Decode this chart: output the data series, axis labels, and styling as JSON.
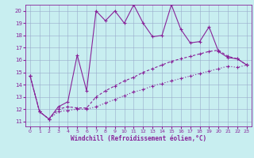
{
  "xlabel": "Windchill (Refroidissement éolien,°C)",
  "bg_color": "#c8eef0",
  "line_color": "#882299",
  "grid_color": "#99aacc",
  "xlim_min": -0.5,
  "xlim_max": 23.5,
  "ylim_min": 10.6,
  "ylim_max": 20.5,
  "xticks": [
    0,
    1,
    2,
    3,
    4,
    5,
    6,
    7,
    8,
    9,
    10,
    11,
    12,
    13,
    14,
    15,
    16,
    17,
    18,
    19,
    20,
    21,
    22,
    23
  ],
  "yticks": [
    11,
    12,
    13,
    14,
    15,
    16,
    17,
    18,
    19,
    20
  ],
  "line1_x": [
    0,
    1,
    2,
    3,
    4,
    5,
    6,
    7,
    8,
    9,
    10,
    11,
    12,
    13,
    14,
    15,
    16,
    17,
    18,
    19,
    20,
    21,
    22,
    23
  ],
  "line1_y": [
    14.7,
    11.8,
    11.2,
    12.2,
    12.6,
    16.4,
    13.5,
    20.0,
    19.2,
    20.0,
    19.0,
    20.5,
    19.0,
    17.9,
    18.0,
    20.5,
    18.5,
    17.4,
    17.5,
    18.7,
    16.7,
    16.2,
    16.1,
    15.6
  ],
  "line2_x": [
    0,
    1,
    2,
    3,
    4,
    5,
    6,
    7,
    8,
    9,
    10,
    11,
    12,
    13,
    14,
    15,
    16,
    17,
    18,
    19,
    20,
    21,
    22,
    23
  ],
  "line2_y": [
    14.7,
    11.8,
    11.2,
    12.0,
    12.2,
    12.1,
    12.1,
    13.0,
    13.5,
    13.9,
    14.3,
    14.6,
    15.0,
    15.3,
    15.6,
    15.9,
    16.1,
    16.3,
    16.5,
    16.7,
    16.8,
    16.3,
    16.1,
    15.6
  ],
  "line3_x": [
    0,
    1,
    2,
    3,
    4,
    5,
    6,
    7,
    8,
    9,
    10,
    11,
    12,
    13,
    14,
    15,
    16,
    17,
    18,
    19,
    20,
    21,
    22,
    23
  ],
  "line3_y": [
    14.7,
    11.8,
    11.2,
    11.8,
    11.9,
    12.0,
    12.0,
    12.2,
    12.5,
    12.8,
    13.1,
    13.4,
    13.6,
    13.9,
    14.1,
    14.3,
    14.5,
    14.7,
    14.9,
    15.1,
    15.3,
    15.5,
    15.4,
    15.6
  ]
}
